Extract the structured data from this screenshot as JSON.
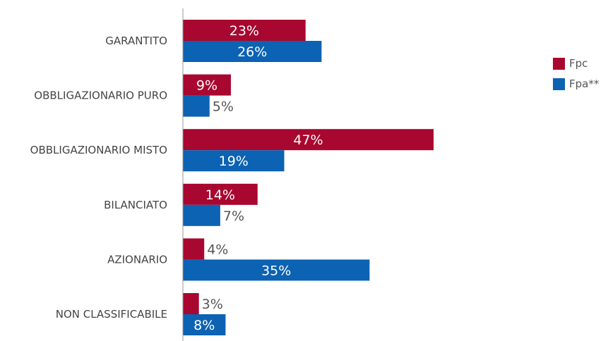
{
  "colors": {
    "fpc": "#A8072F",
    "fpa": "#0C62B3",
    "axis": "#999999",
    "label_inside": "#ffffff",
    "label_outside": "#555555",
    "category_text": "#444444"
  },
  "chart_data": {
    "type": "bar",
    "orientation": "horizontal",
    "categories": [
      "GARANTITO",
      "OBBLIGAZIONARIO PURO",
      "OBBLIGAZIONARIO MISTO",
      "BILANCIATO",
      "AZIONARIO",
      "NON CLASSIFICABILE"
    ],
    "series": [
      {
        "name": "Fpc",
        "values": [
          23,
          9,
          47,
          14,
          4,
          3
        ]
      },
      {
        "name": "Fpa**",
        "values": [
          26,
          5,
          19,
          7,
          35,
          8
        ]
      }
    ],
    "value_labels": {
      "Fpc": [
        "23%",
        "9%",
        "47%",
        "14%",
        "4%",
        "3%"
      ],
      "Fpa**": [
        "26%",
        "5%",
        "19%",
        "7%",
        "35%",
        "8%"
      ]
    },
    "unit": "%",
    "legend_position": "right",
    "grid": false,
    "xlim": [
      0,
      50
    ]
  },
  "legend": {
    "items": [
      {
        "label": "Fpc",
        "color_key": "fpc"
      },
      {
        "label": "Fpa**",
        "color_key": "fpa"
      }
    ]
  }
}
